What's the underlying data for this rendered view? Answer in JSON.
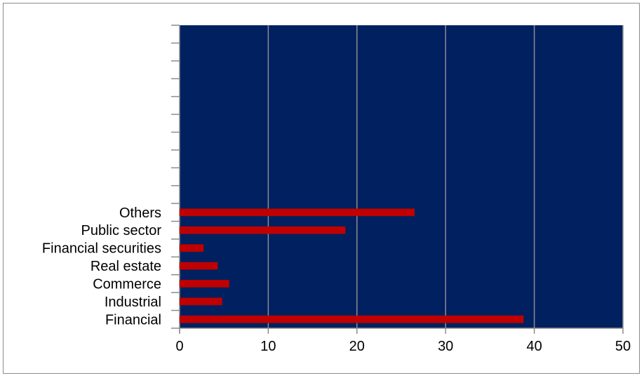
{
  "chart_data": {
    "type": "bar",
    "orientation": "horizontal",
    "categories": [
      "Financial",
      "Industrial",
      "Commerce",
      "Real estate",
      "Financial securities",
      "Public sector",
      "Others"
    ],
    "values": [
      38.8,
      4.8,
      5.6,
      4.3,
      2.7,
      18.7,
      26.5
    ],
    "empty_slots_above": 10,
    "xlim": [
      0,
      50
    ],
    "xticks": [
      "0",
      "10",
      "20",
      "30",
      "40",
      "50"
    ],
    "grid": true,
    "legend": "none",
    "colors": {
      "plot_background": "#002060",
      "bar": "#C00000",
      "gridline": "#8c8c8c"
    }
  }
}
